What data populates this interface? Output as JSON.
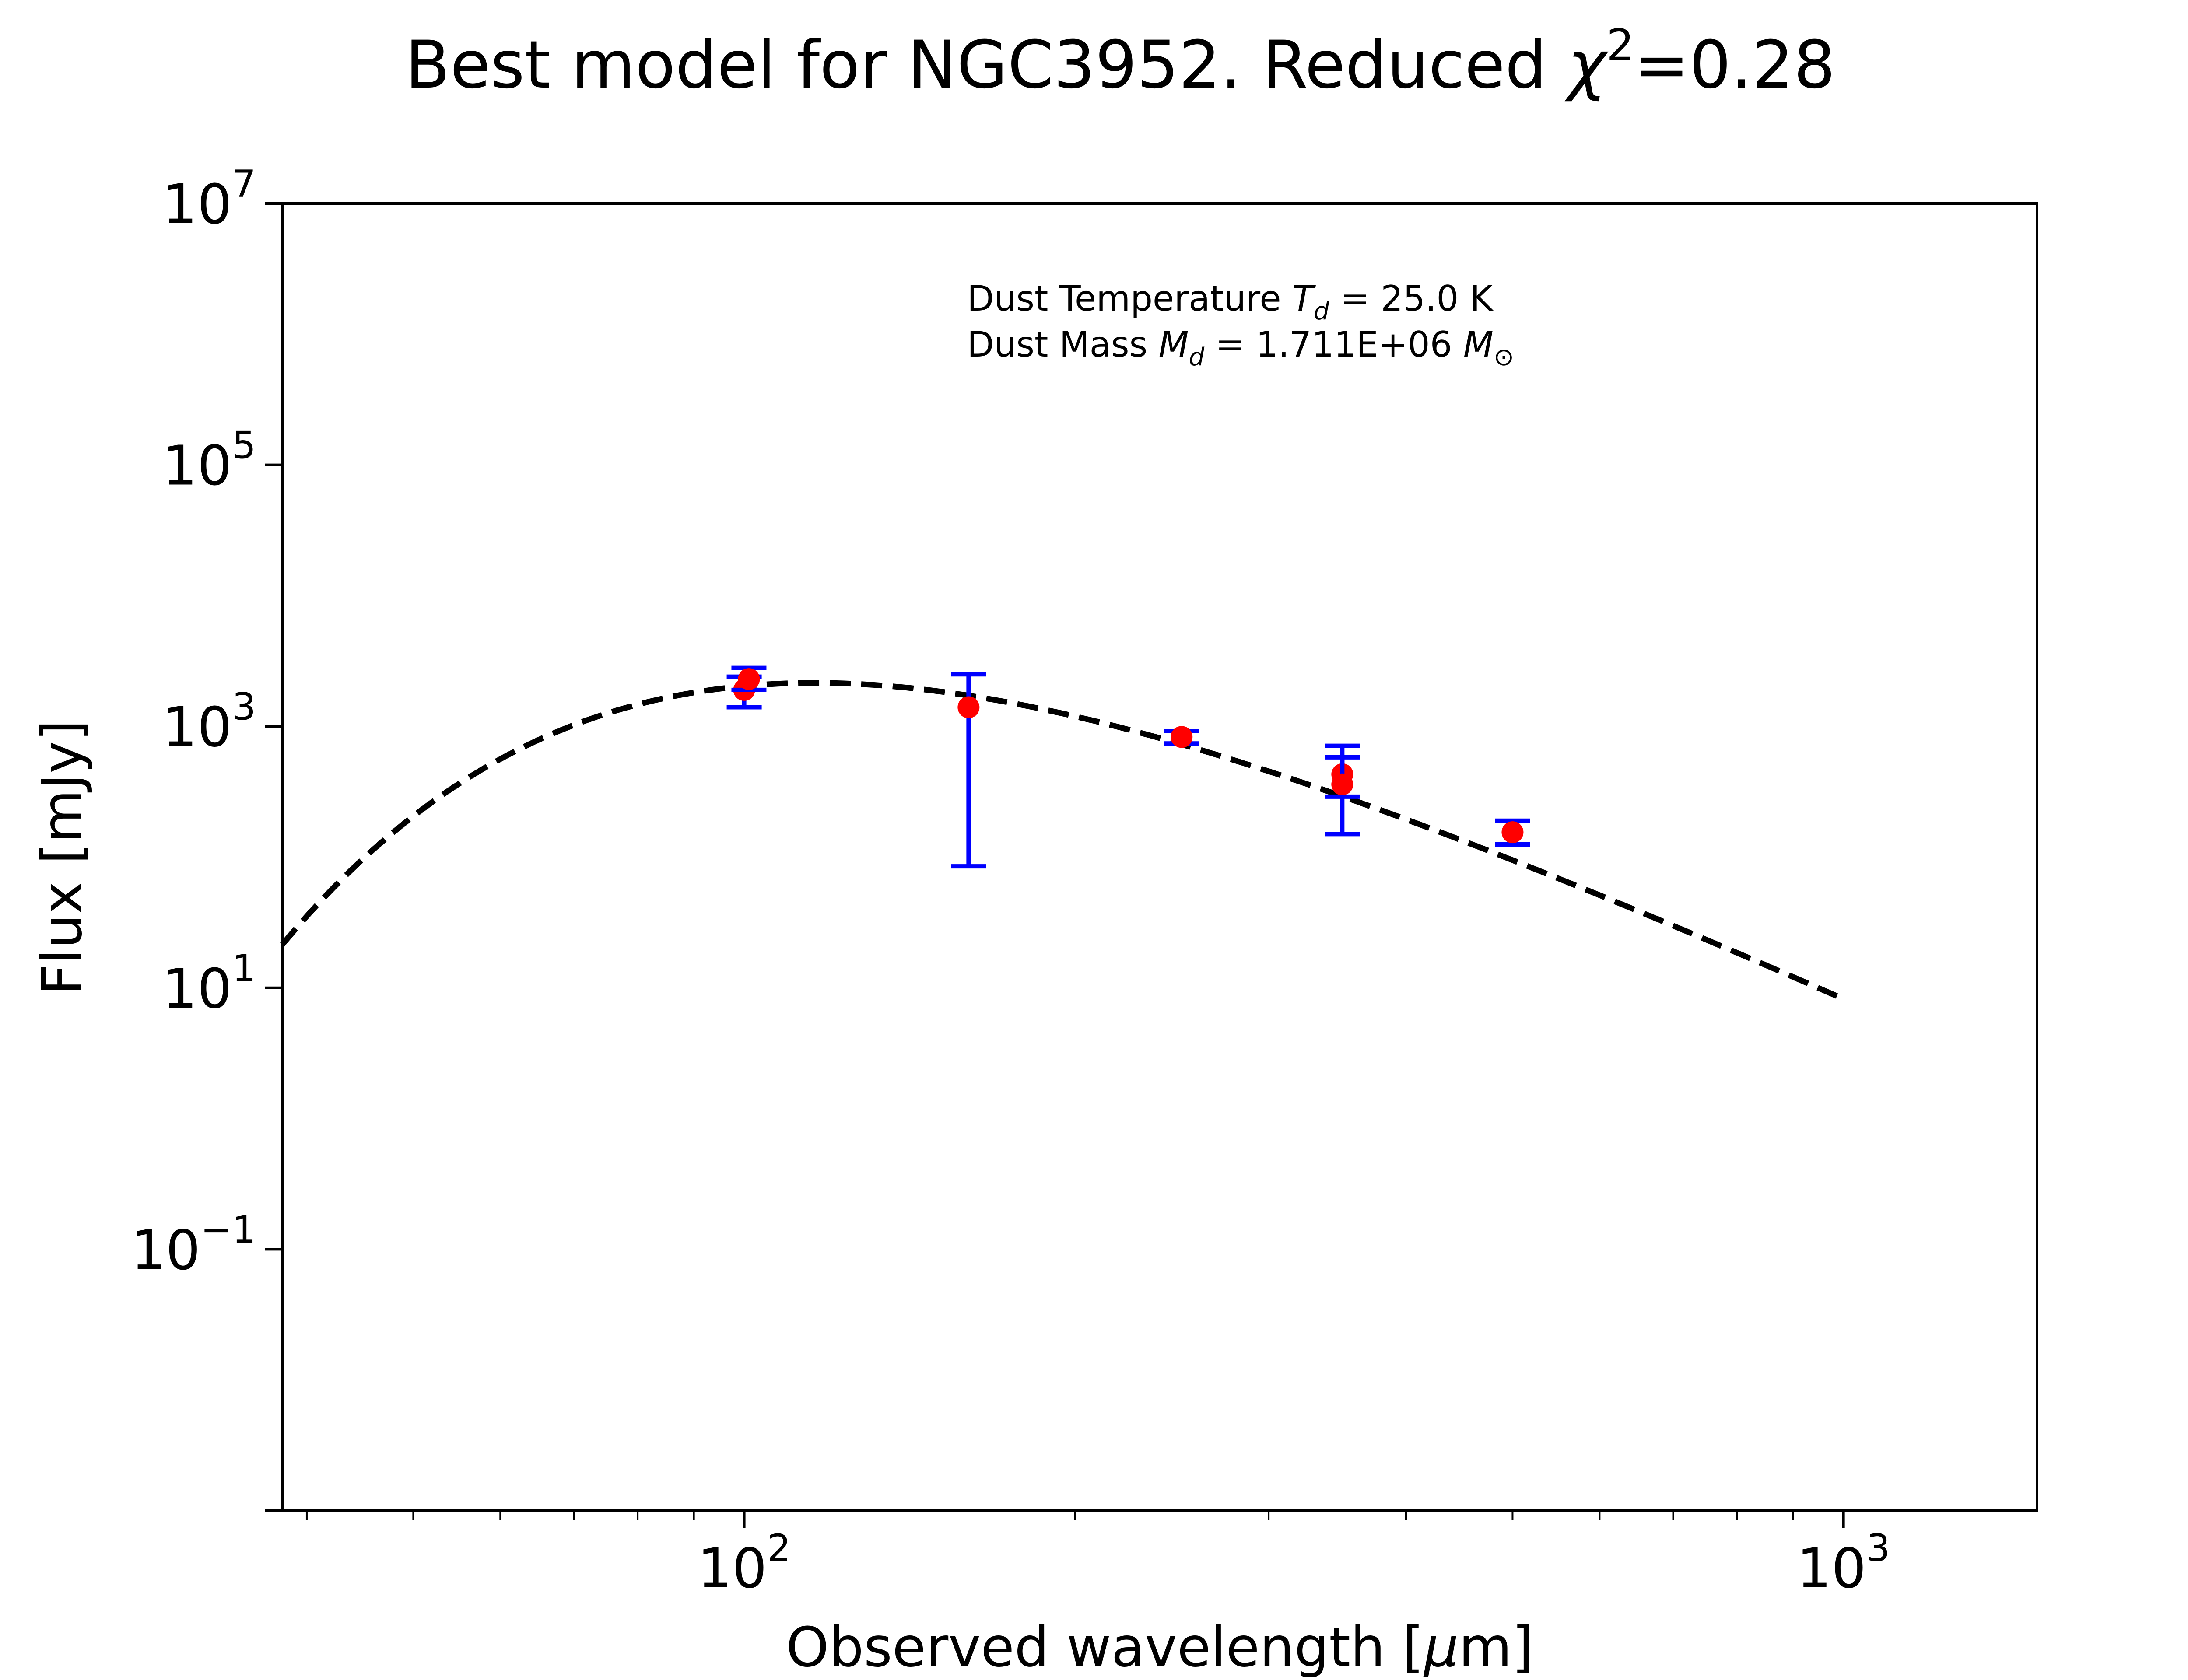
{
  "chart_data": {
    "type": "scatter",
    "title": {
      "text": "Best model for NGC3952. Reduced ",
      "chi_symbol": "χ",
      "chi_exponent": "2",
      "value_text": "=0.28"
    },
    "xlabel": {
      "text": "Observed wavelength [",
      "unit_greek": "μ",
      "unit_rest": "m]"
    },
    "ylabel": "Flux [mJy]",
    "x_scale": "log",
    "y_scale": "log",
    "xlim": [
      38,
      1500
    ],
    "ylim": [
      0.001,
      10000000
    ],
    "grid": false,
    "x_major_ticks": [
      {
        "value": 100,
        "base": "10",
        "exp": "2"
      },
      {
        "value": 1000,
        "base": "10",
        "exp": "3"
      }
    ],
    "x_minor_ticks": [
      40,
      50,
      60,
      70,
      80,
      90,
      200,
      300,
      400,
      500,
      600,
      700,
      800,
      900
    ],
    "y_major_ticks": [
      {
        "value": 0.001,
        "base": "",
        "exp": ""
      },
      {
        "value": 0.1,
        "base": "10",
        "exp": "−1"
      },
      {
        "value": 10,
        "base": "10",
        "exp": "1"
      },
      {
        "value": 1000,
        "base": "10",
        "exp": "3"
      },
      {
        "value": 100000,
        "base": "10",
        "exp": "5"
      },
      {
        "value": 10000000,
        "base": "10",
        "exp": "7"
      }
    ],
    "annotation": {
      "line1_prefix": "Dust Temperature ",
      "line1_symbol": "T",
      "line1_sub": "d",
      "line1_suffix": " = 25.0 K",
      "line2_prefix": "Dust Mass ",
      "line2_symbol": "M",
      "line2_sub": "d",
      "line2_middle": " = 1.711E+06 ",
      "line2_symbol2": "M",
      "line2_sub2": "⊙"
    },
    "model": {
      "style": "dashed",
      "color": "#000000",
      "x_min": 38,
      "x_max": 1000,
      "temperature_K": 25.0,
      "beta": 2.0,
      "peak_flux_mJy": 2150
    },
    "series": [
      {
        "marker_color": "#ff0000",
        "errorbar_color": "#0000ff",
        "points": [
          {
            "x": 100,
            "y": 1900,
            "yerr_low": 1400,
            "yerr_high": 2400
          },
          {
            "x": 101,
            "y": 2300,
            "yerr_low": 1900,
            "yerr_high": 2800
          },
          {
            "x": 160,
            "y": 1400,
            "yerr_low": 85,
            "yerr_high": 2500
          },
          {
            "x": 250,
            "y": 830,
            "yerr_low": 740,
            "yerr_high": 920
          },
          {
            "x": 350,
            "y": 430,
            "yerr_low": 290,
            "yerr_high": 710
          },
          {
            "x": 350,
            "y": 360,
            "yerr_low": 150,
            "yerr_high": 580
          },
          {
            "x": 500,
            "y": 155,
            "yerr_low": 125,
            "yerr_high": 190
          }
        ]
      }
    ]
  }
}
